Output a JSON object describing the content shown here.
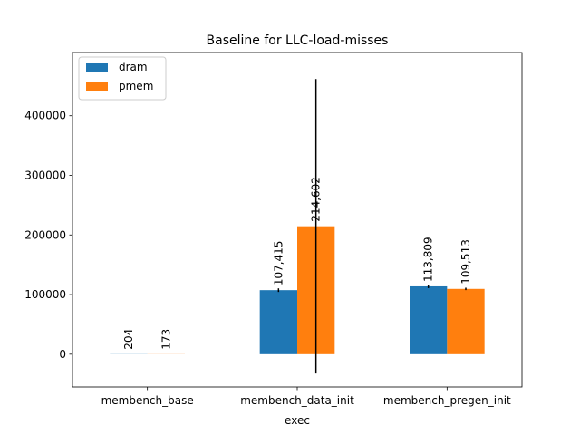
{
  "chart_data": {
    "type": "bar",
    "title": "Baseline for LLC-load-misses",
    "xlabel": "exec",
    "ylabel": "",
    "categories": [
      "membench_base",
      "membench_data_init",
      "membench_pregen_init"
    ],
    "series": [
      {
        "name": "dram",
        "color": "#1f77b4",
        "values": [
          204,
          107415,
          113809
        ],
        "errors": [
          0,
          3000,
          3000
        ],
        "labels": [
          "204",
          "107,415",
          "113,809"
        ]
      },
      {
        "name": "pmem",
        "color": "#ff7f0e",
        "values": [
          173,
          214602,
          109513
        ],
        "errors": [
          0,
          247000,
          2000
        ],
        "labels": [
          "173",
          "214,602",
          "109,513"
        ]
      }
    ],
    "ylim": [
      -55000,
      506000
    ],
    "yticks": [
      0,
      100000,
      200000,
      300000,
      400000
    ],
    "ytick_labels": [
      "0",
      "100000",
      "200000",
      "300000",
      "400000"
    ],
    "legend_position": "upper-left",
    "grid": false
  }
}
